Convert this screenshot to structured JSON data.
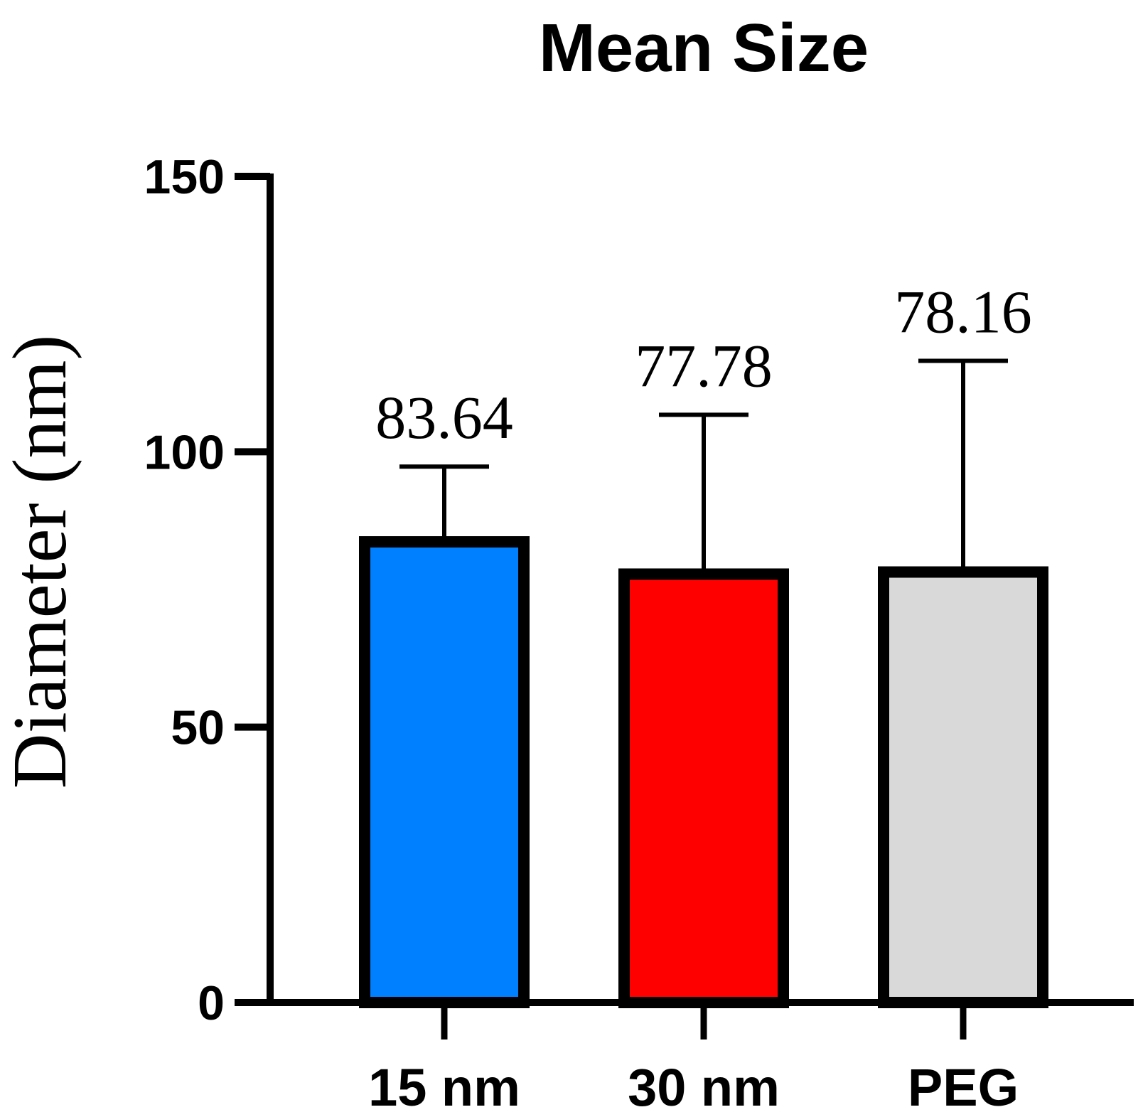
{
  "chart_data": {
    "type": "bar",
    "title": "Mean Size",
    "xlabel": "",
    "ylabel": "Diameter (nm)",
    "ylim": [
      0,
      150
    ],
    "yticks": [
      0,
      50,
      100,
      150
    ],
    "ytick_labels": [
      "0",
      "50",
      "100",
      "150"
    ],
    "categories": [
      "15 nm",
      "30 nm",
      "PEG"
    ],
    "values": [
      83.64,
      77.78,
      78.16
    ],
    "value_labels": [
      "83.64",
      "77.78",
      "78.16"
    ],
    "error_upper": [
      97.3,
      106.7,
      116.5
    ],
    "colors": [
      "#0080ff",
      "#ff0000",
      "#d9d9d9"
    ],
    "grid": false,
    "legend": "none"
  }
}
